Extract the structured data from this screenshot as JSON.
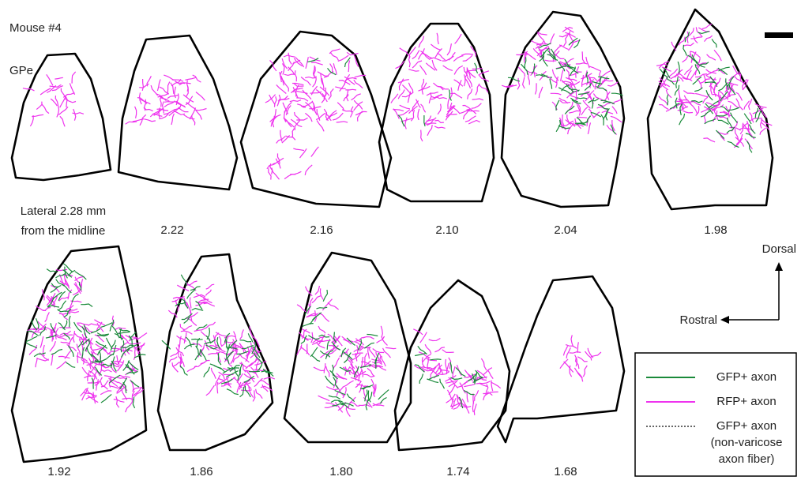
{
  "title": "Mouse #4",
  "region": "GPe",
  "sections": [
    {
      "label": "Lateral 2.28 mm",
      "sublabel": "from the midline"
    },
    {
      "label": "2.22"
    },
    {
      "label": "2.16"
    },
    {
      "label": "2.10"
    },
    {
      "label": "2.04"
    },
    {
      "label": "1.98"
    },
    {
      "label": "1.92"
    },
    {
      "label": "1.86"
    },
    {
      "label": "1.80"
    },
    {
      "label": "1.74"
    },
    {
      "label": "1.68"
    }
  ],
  "orientation": {
    "dorsal": "Dorsal",
    "rostral": "Rostral"
  },
  "legend": [
    {
      "label": "GFP+ axon",
      "color": "#1a8a3a",
      "dashed": false
    },
    {
      "label": "RFP+ axon",
      "color": "#ee33ee",
      "dashed": false
    },
    {
      "label": "GFP+ axon",
      "note": [
        "(non-varicose",
        "axon fiber)"
      ],
      "color": "#333333",
      "dashed": true
    }
  ]
}
